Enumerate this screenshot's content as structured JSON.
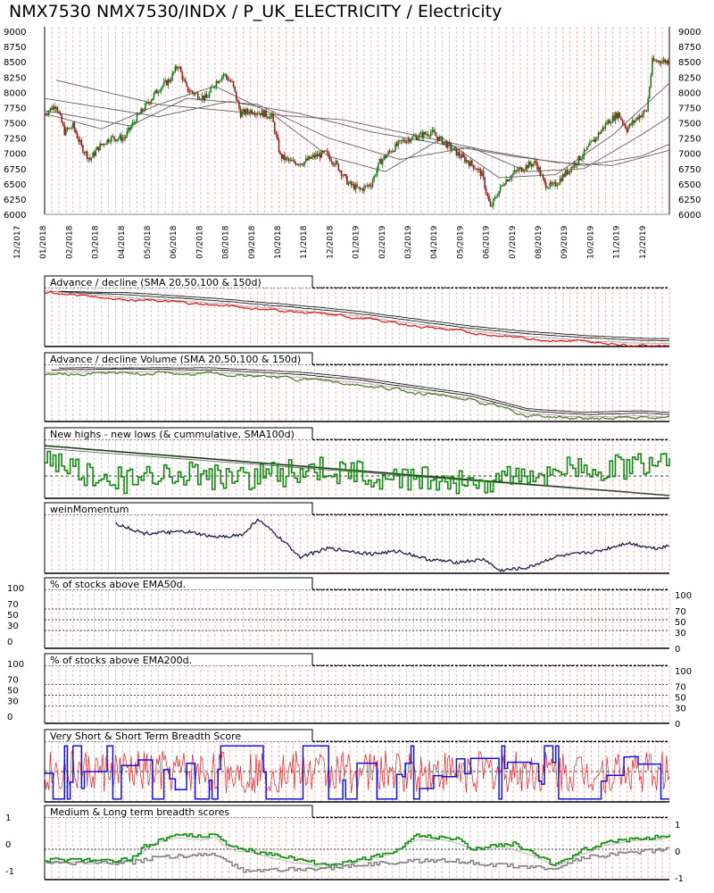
{
  "title": "NMX7530 NMX7530/INDX / P_UK_ELECTRICITY / Electricity",
  "colors": {
    "up_candle": "#1a7a1a",
    "down_candle": "#9a1a1a",
    "ad_line": "#e01010",
    "adv_line": "#4a7a2a",
    "nhnl_line": "#108a10",
    "wein_line": "#1a1f4a",
    "vs_red": "#e82020",
    "vs_blue": "#1010e0",
    "ml_green": "#109010",
    "ml_gray": "#808080",
    "grid_red": "#f2b8b8",
    "sma": "#606060"
  },
  "chart_data": [
    {
      "type": "candlestick",
      "title": "NMX7530 NMX7530/INDX / P_UK_ELECTRICITY / Electricity",
      "x_tick_labels": [
        "12/2017",
        "01/2018",
        "02/2018",
        "03/2018",
        "04/2018",
        "05/2018",
        "06/2018",
        "07/2018",
        "08/2018",
        "09/2018",
        "10/2018",
        "11/2018",
        "12/2018",
        "01/2019",
        "02/2019",
        "03/2019",
        "04/2019",
        "05/2019",
        "06/2019",
        "07/2019",
        "08/2019",
        "09/2019",
        "10/2019",
        "11/2019",
        "12/2019"
      ],
      "y_ticks": [
        6000,
        6250,
        6500,
        6750,
        7000,
        7250,
        7500,
        7750,
        8000,
        8250,
        8500,
        8750,
        9000
      ],
      "ylim": [
        6000,
        9000
      ],
      "anchors": [
        [
          0,
          7650
        ],
        [
          8,
          7800
        ],
        [
          14,
          7350
        ],
        [
          20,
          7450
        ],
        [
          26,
          7100
        ],
        [
          32,
          6900
        ],
        [
          38,
          7100
        ],
        [
          46,
          7250
        ],
        [
          56,
          7250
        ],
        [
          64,
          7550
        ],
        [
          72,
          7800
        ],
        [
          80,
          8050
        ],
        [
          88,
          8200
        ],
        [
          94,
          8450
        ],
        [
          100,
          8050
        ],
        [
          108,
          7950
        ],
        [
          114,
          7900
        ],
        [
          120,
          8150
        ],
        [
          126,
          8300
        ],
        [
          132,
          8150
        ],
        [
          138,
          7650
        ],
        [
          146,
          7700
        ],
        [
          154,
          7650
        ],
        [
          160,
          7600
        ],
        [
          166,
          6950
        ],
        [
          174,
          6850
        ],
        [
          182,
          6850
        ],
        [
          190,
          6950
        ],
        [
          198,
          7000
        ],
        [
          206,
          6800
        ],
        [
          214,
          6500
        ],
        [
          222,
          6400
        ],
        [
          230,
          6500
        ],
        [
          236,
          6850
        ],
        [
          244,
          7050
        ],
        [
          252,
          7200
        ],
        [
          258,
          7250
        ],
        [
          266,
          7300
        ],
        [
          272,
          7350
        ],
        [
          280,
          7200
        ],
        [
          288,
          7050
        ],
        [
          296,
          6900
        ],
        [
          302,
          6800
        ],
        [
          308,
          6650
        ],
        [
          314,
          6100
        ],
        [
          318,
          6300
        ],
        [
          324,
          6550
        ],
        [
          332,
          6700
        ],
        [
          340,
          6800
        ],
        [
          346,
          6850
        ],
        [
          352,
          6500
        ],
        [
          358,
          6450
        ],
        [
          364,
          6600
        ],
        [
          372,
          6800
        ],
        [
          380,
          7000
        ],
        [
          388,
          7250
        ],
        [
          396,
          7500
        ],
        [
          404,
          7650
        ],
        [
          410,
          7400
        ],
        [
          418,
          7600
        ],
        [
          424,
          7700
        ],
        [
          428,
          8500
        ],
        [
          434,
          8520
        ],
        [
          440,
          8500
        ]
      ],
      "sma_series": [
        {
          "anchors": [
            [
              0,
              7650
            ],
            [
              40,
              7400
            ],
            [
              80,
              7800
            ],
            [
              120,
              8100
            ],
            [
              160,
              7650
            ],
            [
              200,
              6950
            ],
            [
              240,
              6700
            ],
            [
              280,
              7250
            ],
            [
              320,
              6600
            ],
            [
              360,
              6650
            ],
            [
              400,
              7300
            ],
            [
              440,
              8150
            ]
          ]
        },
        {
          "anchors": [
            [
              0,
              7700
            ],
            [
              60,
              7450
            ],
            [
              100,
              7900
            ],
            [
              150,
              7800
            ],
            [
              200,
              7250
            ],
            [
              250,
              6900
            ],
            [
              300,
              7100
            ],
            [
              340,
              6700
            ],
            [
              380,
              6750
            ],
            [
              420,
              7300
            ],
            [
              440,
              7600
            ]
          ]
        },
        {
          "anchors": [
            [
              0,
              7900
            ],
            [
              80,
              7600
            ],
            [
              130,
              7850
            ],
            [
              180,
              7650
            ],
            [
              230,
              7350
            ],
            [
              280,
              7150
            ],
            [
              330,
              6950
            ],
            [
              380,
              6800
            ],
            [
              420,
              6950
            ],
            [
              440,
              7150
            ]
          ]
        },
        {
          "anchors": [
            [
              8,
              8200
            ],
            [
              80,
              7800
            ],
            [
              150,
              7650
            ],
            [
              210,
              7550
            ],
            [
              260,
              7300
            ],
            [
              310,
              7050
            ],
            [
              360,
              6850
            ],
            [
              400,
              6800
            ],
            [
              440,
              7050
            ]
          ]
        }
      ]
    },
    {
      "type": "line",
      "title": "Advance / decline (SMA 20,50,100 & 150d)",
      "series": [
        {
          "anchors": [
            [
              0,
              0.98
            ],
            [
              60,
              0.85
            ],
            [
              120,
              0.75
            ],
            [
              180,
              0.62
            ],
            [
              220,
              0.52
            ],
            [
              260,
              0.38
            ],
            [
              300,
              0.25
            ],
            [
              340,
              0.15
            ],
            [
              380,
              0.08
            ],
            [
              420,
              0.03
            ],
            [
              440,
              0.02
            ]
          ]
        }
      ]
    },
    {
      "type": "line",
      "title": "Advance / decline Volume (SMA 20,50,100 & 150d)",
      "series": [
        {
          "anchors": [
            [
              0,
              0.88
            ],
            [
              60,
              0.9
            ],
            [
              120,
              0.88
            ],
            [
              180,
              0.8
            ],
            [
              220,
              0.7
            ],
            [
              260,
              0.55
            ],
            [
              300,
              0.4
            ],
            [
              340,
              0.12
            ],
            [
              380,
              0.05
            ],
            [
              420,
              0.08
            ],
            [
              440,
              0.05
            ]
          ]
        }
      ]
    },
    {
      "type": "line",
      "title": "New highs - new lows (& cummulative, SMA100d)",
      "series": [
        {
          "anchors": [
            [
              0,
              0.7
            ],
            [
              30,
              0.4
            ],
            [
              60,
              0.3
            ],
            [
              90,
              0.5
            ],
            [
              130,
              0.35
            ],
            [
              170,
              0.45
            ],
            [
              200,
              0.5
            ],
            [
              230,
              0.4
            ],
            [
              270,
              0.35
            ],
            [
              310,
              0.3
            ],
            [
              350,
              0.45
            ],
            [
              390,
              0.55
            ],
            [
              420,
              0.6
            ],
            [
              440,
              0.8
            ]
          ]
        }
      ]
    },
    {
      "type": "line",
      "title": "weinMomentum",
      "series": [
        {
          "anchors": [
            [
              50,
              0.9
            ],
            [
              70,
              0.72
            ],
            [
              100,
              0.75
            ],
            [
              120,
              0.65
            ],
            [
              140,
              0.7
            ],
            [
              150,
              0.98
            ],
            [
              165,
              0.65
            ],
            [
              180,
              0.3
            ],
            [
              200,
              0.45
            ],
            [
              230,
              0.35
            ],
            [
              250,
              0.4
            ],
            [
              270,
              0.25
            ],
            [
              290,
              0.2
            ],
            [
              310,
              0.25
            ],
            [
              320,
              0.05
            ],
            [
              340,
              0.1
            ],
            [
              360,
              0.3
            ],
            [
              390,
              0.4
            ],
            [
              410,
              0.55
            ],
            [
              430,
              0.45
            ],
            [
              440,
              0.5
            ]
          ]
        }
      ]
    },
    {
      "type": "line",
      "title": "% of stocks above EMA50d.",
      "y_ticks": [
        0,
        30,
        50,
        70,
        100
      ],
      "series": []
    },
    {
      "type": "line",
      "title": "% of stocks above EMA200d.",
      "y_ticks": [
        0,
        30,
        50,
        70,
        100
      ],
      "series": []
    },
    {
      "type": "line",
      "title": "Very Short & Short Term Breadth Score",
      "series": []
    },
    {
      "type": "line",
      "title": "Medium & Long term breadth scores",
      "y_ticks": [
        -1,
        0,
        1
      ],
      "series": [
        {
          "anchors": [
            [
              0,
              -0.4
            ],
            [
              60,
              -0.4
            ],
            [
              70,
              0.1
            ],
            [
              90,
              0.5
            ],
            [
              120,
              0.5
            ],
            [
              130,
              0.1
            ],
            [
              160,
              -0.2
            ],
            [
              200,
              -0.6
            ],
            [
              230,
              -0.3
            ],
            [
              250,
              0.0
            ],
            [
              260,
              0.5
            ],
            [
              290,
              0.4
            ],
            [
              300,
              0.0
            ],
            [
              330,
              0.2
            ],
            [
              360,
              -0.6
            ],
            [
              380,
              0.0
            ],
            [
              400,
              0.3
            ],
            [
              440,
              0.5
            ]
          ]
        },
        {
          "anchors": [
            [
              0,
              -0.5
            ],
            [
              60,
              -0.5
            ],
            [
              80,
              -0.3
            ],
            [
              120,
              -0.2
            ],
            [
              140,
              -0.8
            ],
            [
              200,
              -0.7
            ],
            [
              240,
              -0.5
            ],
            [
              280,
              -0.4
            ],
            [
              320,
              -0.6
            ],
            [
              360,
              -0.7
            ],
            [
              380,
              -0.3
            ],
            [
              440,
              0.0
            ]
          ]
        }
      ]
    }
  ]
}
